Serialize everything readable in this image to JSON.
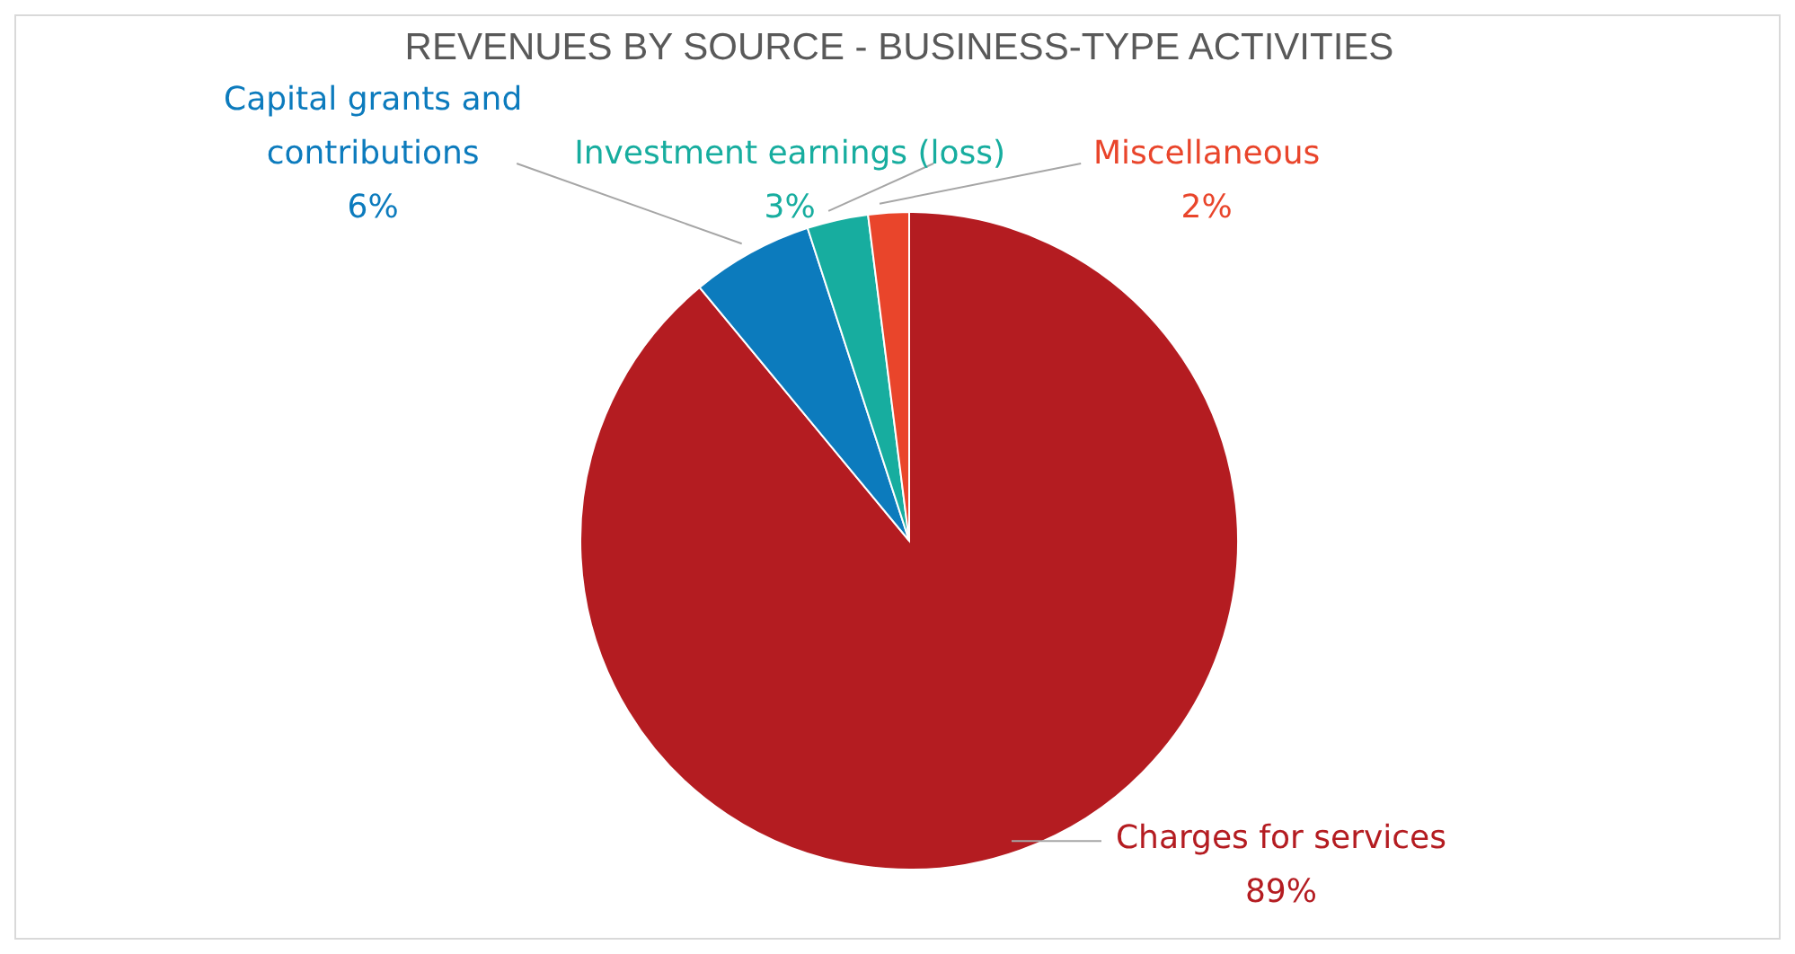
{
  "chart_data": {
    "type": "pie",
    "title": "REVENUES BY SOURCE - BUSINESS-TYPE ACTIVITIES",
    "categories": [
      "Charges for services",
      "Capital grants and contributions",
      "Investment earnings (loss)",
      "Miscellaneous"
    ],
    "values": [
      89,
      6,
      3,
      2
    ],
    "value_labels": [
      "89%",
      "6%",
      "3%",
      "2%"
    ],
    "colors": [
      "#b41c21",
      "#0c7bbd",
      "#17ad9f",
      "#e9452b"
    ],
    "legend": false
  }
}
